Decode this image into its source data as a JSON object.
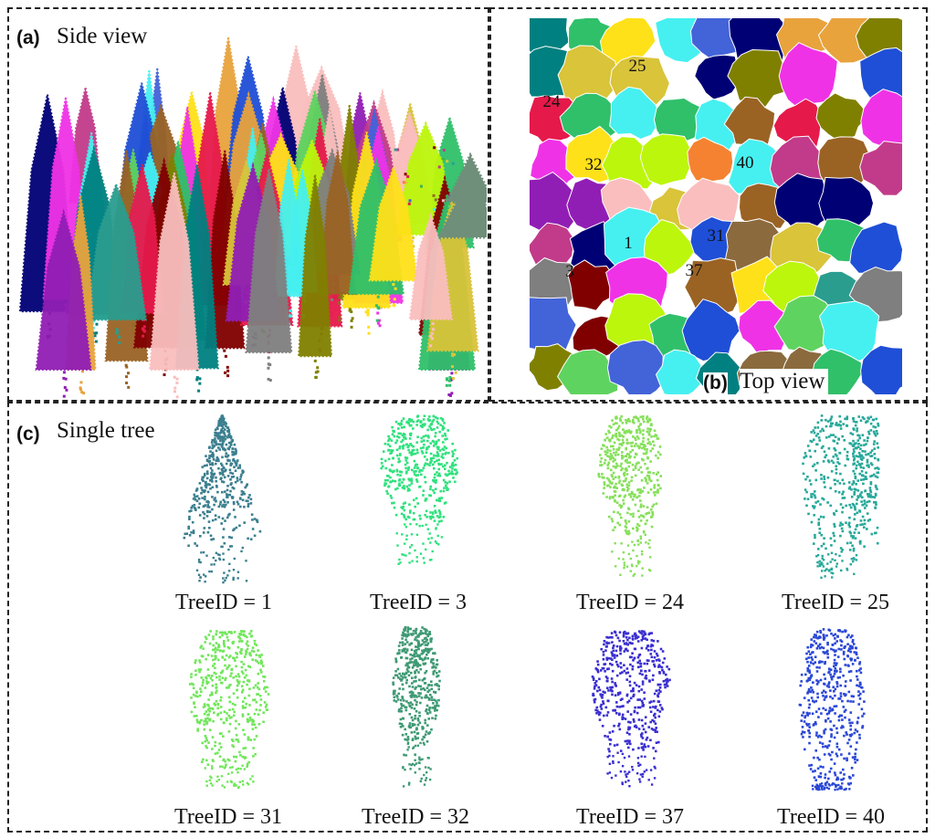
{
  "panels": {
    "a": {
      "letter": "(a)",
      "title": "Side view"
    },
    "b": {
      "letter": "(b)",
      "title": "Top view"
    },
    "c": {
      "letter": "(c)",
      "title": "Single tree"
    }
  },
  "top_view_tree_ids": [
    "25",
    "24",
    "32",
    "40",
    "1",
    "31",
    "3",
    "37"
  ],
  "single_trees": [
    {
      "label": "TreeID = 1",
      "color": "#3b7f8f"
    },
    {
      "label": "TreeID = 3",
      "color": "#2fe27d"
    },
    {
      "label": "TreeID = 24",
      "color": "#86e05a"
    },
    {
      "label": "TreeID = 25",
      "color": "#27a89a"
    },
    {
      "label": "TreeID = 31",
      "color": "#72e65c"
    },
    {
      "label": "TreeID = 32",
      "color": "#3f9a74"
    },
    {
      "label": "TreeID = 37",
      "color": "#3a2fd0"
    },
    {
      "label": "TreeID = 40",
      "color": "#2b48d6"
    }
  ],
  "palette": [
    "#e6194b",
    "#3cb44b",
    "#ffe119",
    "#4363d8",
    "#f58231",
    "#911eb4",
    "#46f0f0",
    "#f032e6",
    "#bcf60c",
    "#fabebe",
    "#008080",
    "#9a6324",
    "#800000",
    "#808000",
    "#000075",
    "#e8a33d",
    "#5fd35f",
    "#2a9d8f",
    "#c23b8a",
    "#7f7f7f",
    "#1f4fd6",
    "#d9c43a",
    "#8b6a3e",
    "#30c06a"
  ]
}
